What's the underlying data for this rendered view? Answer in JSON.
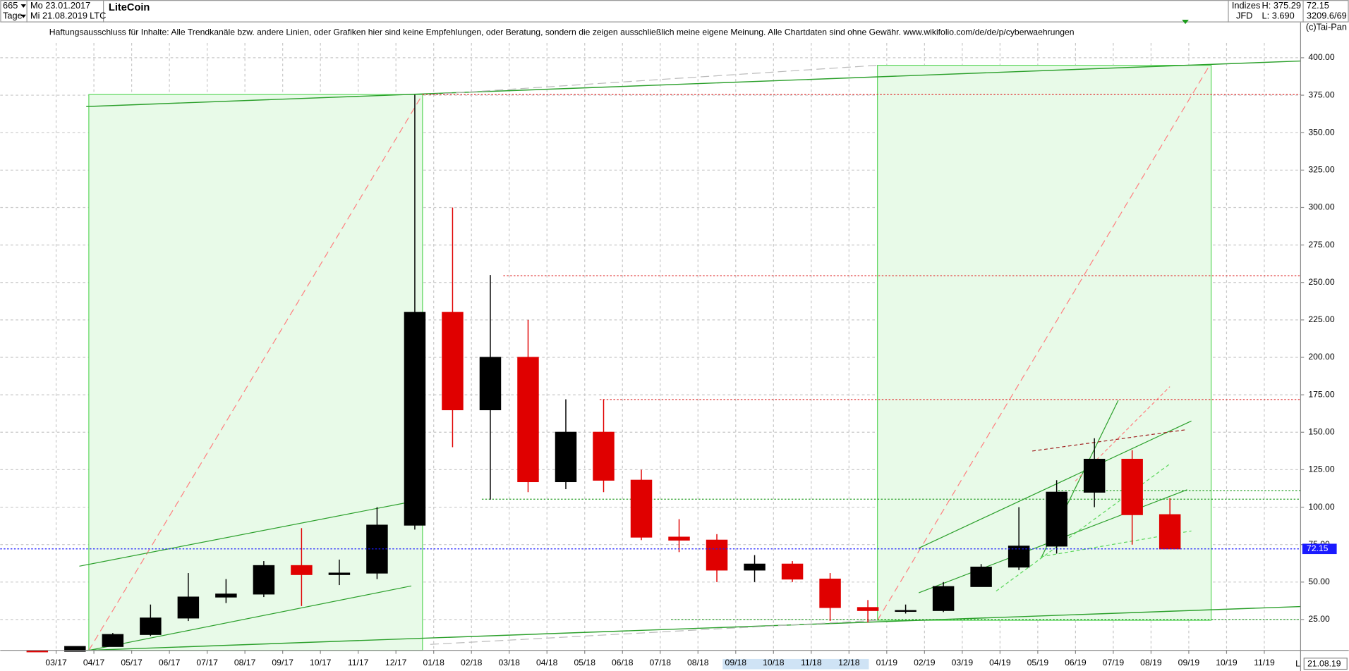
{
  "header": {
    "count": "665",
    "start": "Mo 23.01.2017",
    "unit": "Tage",
    "end": "Mi 21.08.2019",
    "name": "LiteCoin",
    "symbol": "LTC",
    "market": "Indizes",
    "source": "JFD",
    "high": "H: 375.29",
    "low": "L: 3.690",
    "last": "72.15",
    "info": "3209.6/69",
    "copyright": "(c)Tai-Pan"
  },
  "chart_data": {
    "type": "candlestick",
    "subtitle": "Haftungsausschluss für Inhalte: Alle Trendkanäle bzw. andere Linien, oder Grafiken hier sind keine Empfehlungen, oder Beratung, sondern die zeigen ausschließlich meine eigene Meinung. Alle Chartdaten sind ohne Gewähr.  www.wikifolio.com/de/de/p/cyberwaehrungen",
    "categories": [
      null,
      "03/17",
      "04/17",
      "05/17",
      "06/17",
      "07/17",
      "08/17",
      "09/17",
      "10/17",
      "11/17",
      "12/17",
      "01/18",
      "02/18",
      "03/18",
      "04/18",
      "05/18",
      "06/18",
      "07/18",
      "08/18",
      "09/18",
      "10/18",
      "11/18",
      "12/18",
      "01/19",
      "02/19",
      "03/19",
      "04/19",
      "05/19",
      "06/19",
      "07/19",
      "08/19",
      "09/19",
      "10/19",
      "11/19"
    ],
    "open": [
      4.0,
      3.8,
      7,
      15,
      26,
      40,
      42,
      61,
      55,
      56,
      88,
      230,
      165,
      200,
      117,
      150,
      118,
      80,
      78,
      58,
      62,
      52,
      33,
      31,
      31,
      47,
      60,
      74,
      110,
      132,
      95,
      null,
      null,
      null
    ],
    "high": [
      4.1,
      7,
      16,
      35,
      56,
      52,
      64,
      86,
      65,
      100,
      375.29,
      300,
      255,
      225,
      172,
      172,
      125,
      92,
      82,
      68,
      64,
      56,
      38,
      35,
      50,
      62,
      100,
      118,
      146,
      138,
      106,
      null,
      null,
      null
    ],
    "low": [
      3.69,
      3.7,
      7,
      14,
      24,
      36,
      40,
      34,
      48,
      52,
      85,
      140,
      105,
      110,
      112,
      110,
      78,
      70,
      50,
      50,
      50,
      24,
      23,
      29,
      30,
      47,
      58,
      69,
      100,
      75,
      72,
      null,
      null,
      null
    ],
    "close": [
      3.8,
      7,
      15,
      26,
      40,
      42,
      61,
      55,
      56,
      88,
      230,
      165,
      200,
      117,
      150,
      118,
      80,
      78,
      58,
      62,
      52,
      33,
      31,
      31,
      47,
      60,
      74,
      110,
      132,
      95,
      72.15,
      null,
      null,
      null
    ],
    "up_color": "#000000",
    "down_color": "#e00000",
    "ylim": [
      4.4,
      407
    ],
    "yticks": [
      {
        "value": 25,
        "label": "25.00"
      },
      {
        "value": 50,
        "label": "50.00"
      },
      {
        "value": 75,
        "label": "75.00"
      },
      {
        "value": 100,
        "label": "100.00"
      },
      {
        "value": 125,
        "label": "125.00"
      },
      {
        "value": 150,
        "label": "150.00"
      },
      {
        "value": 175,
        "label": "175.00"
      },
      {
        "value": 200,
        "label": "200.00"
      },
      {
        "value": 225,
        "label": "225.00"
      },
      {
        "value": 250,
        "label": "250.00"
      },
      {
        "value": 275,
        "label": "275.00"
      },
      {
        "value": 300,
        "label": "300.00"
      },
      {
        "value": 325,
        "label": "325.00"
      },
      {
        "value": 350,
        "label": "350.00"
      },
      {
        "value": 375,
        "label": "375.00"
      },
      {
        "value": 400,
        "label": "400.00"
      }
    ],
    "grid": true,
    "last_price": 72.15,
    "last_color": "#1a1aff",
    "x_end_label": "21.08.19",
    "axis_end": "L"
  }
}
